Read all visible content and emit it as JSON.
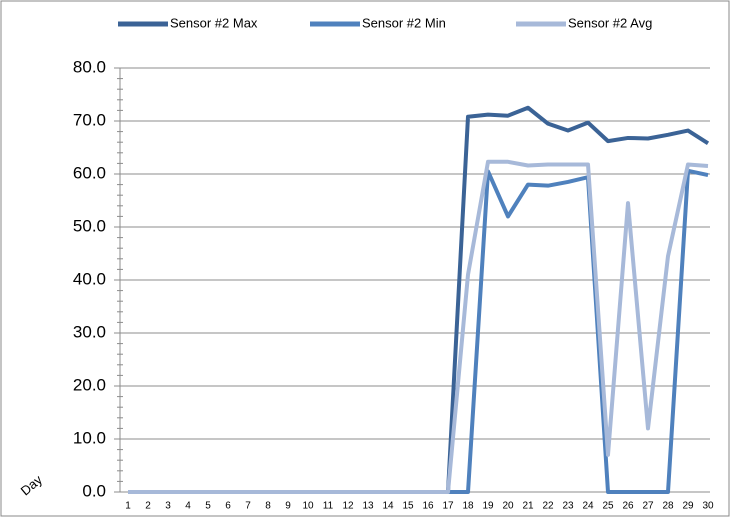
{
  "chart_data": {
    "type": "line",
    "categories": [
      "1",
      "2",
      "3",
      "4",
      "5",
      "6",
      "7",
      "8",
      "9",
      "10",
      "11",
      "12",
      "13",
      "14",
      "15",
      "16",
      "17",
      "18",
      "19",
      "20",
      "21",
      "22",
      "23",
      "24",
      "25",
      "26",
      "27",
      "28",
      "29",
      "30"
    ],
    "x_label": "Day",
    "series": [
      {
        "name": "Sensor #2 Max",
        "color": "#3b6396",
        "values": [
          0,
          0,
          0,
          0,
          0,
          0,
          0,
          0,
          0,
          0,
          0,
          0,
          0,
          0,
          0,
          0,
          0,
          70.8,
          71.2,
          71,
          72.5,
          69.5,
          68.2,
          69.7,
          66.2,
          66.8,
          66.7,
          67.4,
          68.2,
          65.8
        ]
      },
      {
        "name": "Sensor #2 Min",
        "color": "#4f81bd",
        "values": [
          0,
          0,
          0,
          0,
          0,
          0,
          0,
          0,
          0,
          0,
          0,
          0,
          0,
          0,
          0,
          0,
          0,
          0,
          60.5,
          52,
          58,
          57.8,
          58.5,
          59.4,
          0,
          0,
          0,
          0,
          60.6,
          59.8
        ]
      },
      {
        "name": "Sensor #2 Avg",
        "color": "#a7b9d9",
        "values": [
          0,
          0,
          0,
          0,
          0,
          0,
          0,
          0,
          0,
          0,
          0,
          0,
          0,
          0,
          0,
          0,
          0,
          41,
          62.3,
          62.3,
          61.6,
          61.8,
          61.8,
          61.8,
          7,
          54.5,
          12,
          44.5,
          61.8,
          61.5
        ]
      }
    ],
    "ylim": [
      0,
      80
    ],
    "yticks": [
      {
        "value": 0,
        "label": "0.0"
      },
      {
        "value": 10,
        "label": "10.0"
      },
      {
        "value": 20,
        "label": "20.0"
      },
      {
        "value": 30,
        "label": "30.0"
      },
      {
        "value": 40,
        "label": "40.0"
      },
      {
        "value": 50,
        "label": "50.0"
      },
      {
        "value": 60,
        "label": "60.0"
      },
      {
        "value": 70,
        "label": "70.0"
      },
      {
        "value": 80,
        "label": "80.0"
      }
    ],
    "grid": true,
    "legend": "top"
  }
}
